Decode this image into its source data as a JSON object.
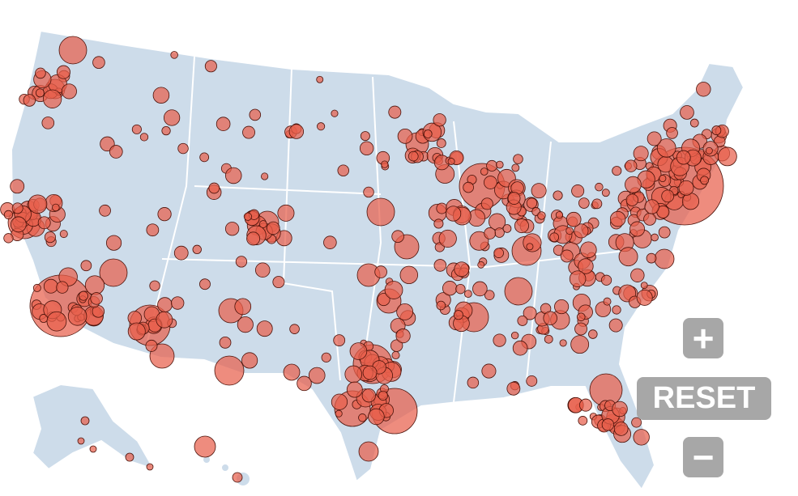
{
  "controls": {
    "zoom_in": "+",
    "reset": "RESET",
    "zoom_out": "−"
  }
}
